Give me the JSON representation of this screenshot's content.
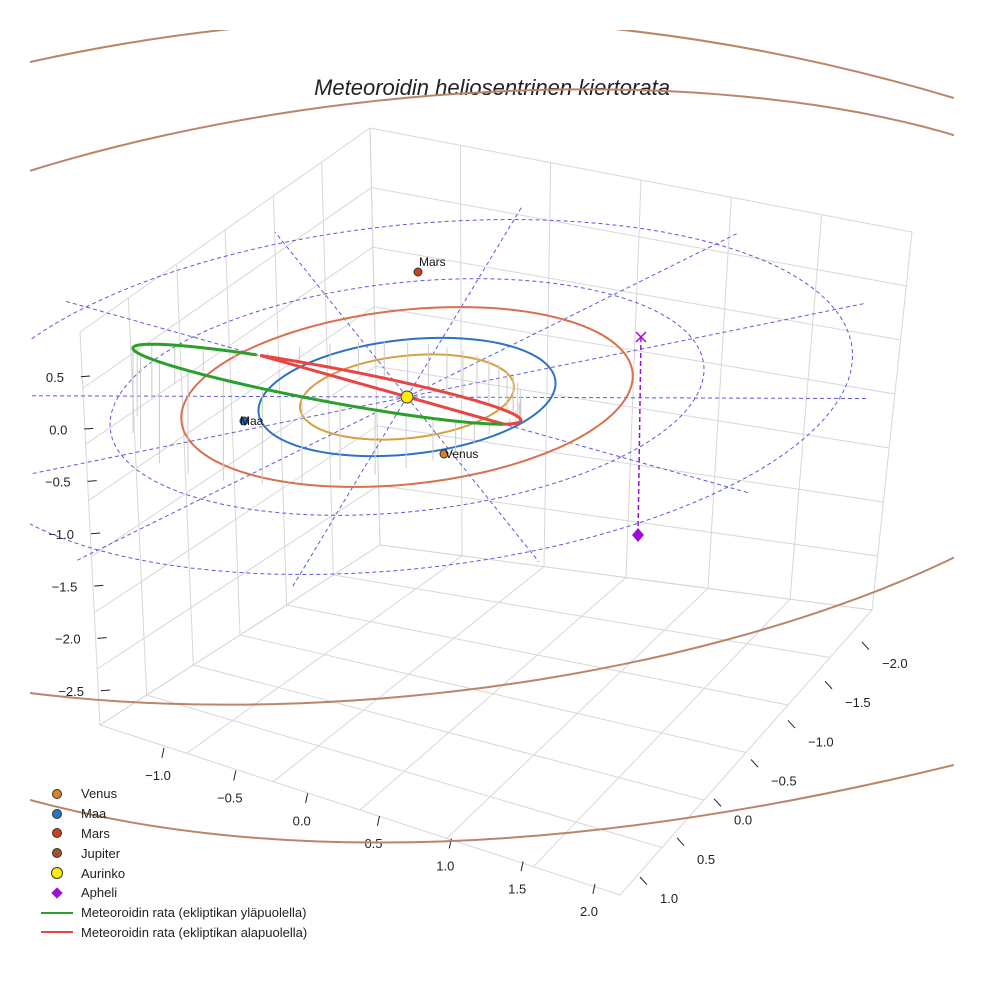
{
  "chart_data": {
    "type": "line",
    "projection": "3d",
    "title": "Meteoroidin heliosentrinen kiertorata",
    "z_ticks": [
      "0.5",
      "0.0",
      "−0.5",
      "−1.0",
      "−1.5",
      "−2.0",
      "−2.5"
    ],
    "x_ticks": [
      "−1.0",
      "−0.5",
      "0.0",
      "0.5",
      "1.0",
      "1.5",
      "2.0"
    ],
    "y_ticks": [
      "−2.0",
      "−1.5",
      "−1.0",
      "−0.5",
      "0.0",
      "0.5",
      "1.0"
    ],
    "planet_orbits_au": [
      {
        "name": "Venus",
        "radius": 0.72,
        "color": "#d4a13f"
      },
      {
        "name": "Maa",
        "radius": 1.0,
        "color": "#2e72c8"
      },
      {
        "name": "Mars",
        "radius": 1.52,
        "color": "#d9704e"
      },
      {
        "name": "Jupiter",
        "radius": 5.2,
        "color": "#b8876a"
      }
    ],
    "reference_circles_au": [
      1.0,
      2.0,
      3.0
    ],
    "planet_labels": [
      {
        "name": "Mars",
        "text": "Mars",
        "color": "#c8421c"
      },
      {
        "name": "Maa",
        "text": "Maa",
        "color": "#2a6fb5"
      },
      {
        "name": "Venus",
        "text": "Venus",
        "color": "#d88220"
      }
    ],
    "sun": {
      "name": "Aurinko",
      "color": "#ffee00"
    },
    "aphelion": {
      "name": "Apheli",
      "color": "#9c10d6",
      "z": -0.85
    },
    "meteoroid_orbit": {
      "semi_major_axis_au": 1.35,
      "eccentricity": 0.43,
      "aphelion_distance_au": 1.93,
      "above_color": "#2aa02a",
      "below_color": "#e84545"
    },
    "legend": [
      {
        "label": "Venus",
        "kind": "dot",
        "color": "#d88220"
      },
      {
        "label": "Maa",
        "kind": "dot",
        "color": "#2a76c0"
      },
      {
        "label": "Mars",
        "kind": "dot",
        "color": "#c8421c"
      },
      {
        "label": "Jupiter",
        "kind": "dot",
        "color": "#a0522d"
      },
      {
        "label": "Aurinko",
        "kind": "sun",
        "color": "#ffee00"
      },
      {
        "label": "Apheli",
        "kind": "diamond",
        "color": "#9c10d6"
      },
      {
        "label": "Meteoroidin rata (ekliptikan yläpuolella)",
        "kind": "line",
        "color": "#2aa02a"
      },
      {
        "label": "Meteoroidin rata (ekliptikan alapuolella)",
        "kind": "line",
        "color": "#e84545"
      }
    ]
  }
}
